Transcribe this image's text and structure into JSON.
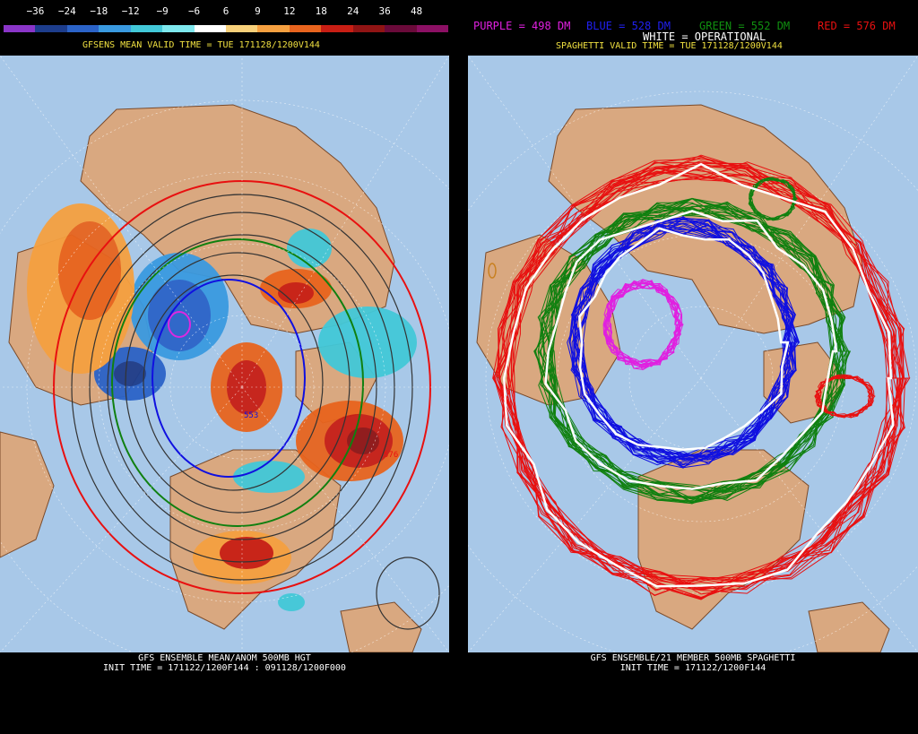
{
  "legend": {
    "ticks": [
      "−36",
      "−24",
      "−18",
      "−12",
      "−9",
      "−6",
      "6",
      "9",
      "12",
      "18",
      "24",
      "36",
      "48"
    ],
    "colors": [
      "#8a35c8",
      "#1d3d8c",
      "#2b63c8",
      "#3a9ae0",
      "#42c8d8",
      "#7ee8ee",
      "#ffffff",
      "#f7d07a",
      "#f5a040",
      "#e8641e",
      "#c81e14",
      "#901414",
      "#6a0a3a",
      "#8c1064"
    ]
  },
  "left": {
    "valid_time": "GFSENS MEAN VALID TIME = TUE 171128/1200V144",
    "footer_line1": "GFS ENSEMBLE MEAN/ANOM 500MB HGT",
    "footer_line2": "INIT TIME = 171122/1200F144 : 091128/1200F000",
    "contour_labels": [
      "553",
      "576"
    ]
  },
  "right": {
    "purple_label": "PURPLE = 498 DM",
    "blue_label": "BLUE = 528 DM",
    "green_label": "GREEN = 552 DM",
    "red_label": "RED = 576 DM",
    "white_label": "WHITE = OPERATIONAL",
    "valid_time": "SPAGHETTI VALID TIME = TUE 171128/1200V144",
    "footer_line1": "GFS ENSEMBLE/21 MEMBER 500MB SPAGHETTI",
    "footer_line2": "INIT TIME = 171122/1200F144",
    "colors": {
      "purple": "#e020e0",
      "blue": "#1010e0",
      "green": "#108010",
      "red": "#e81010",
      "white": "#ffffff"
    }
  }
}
